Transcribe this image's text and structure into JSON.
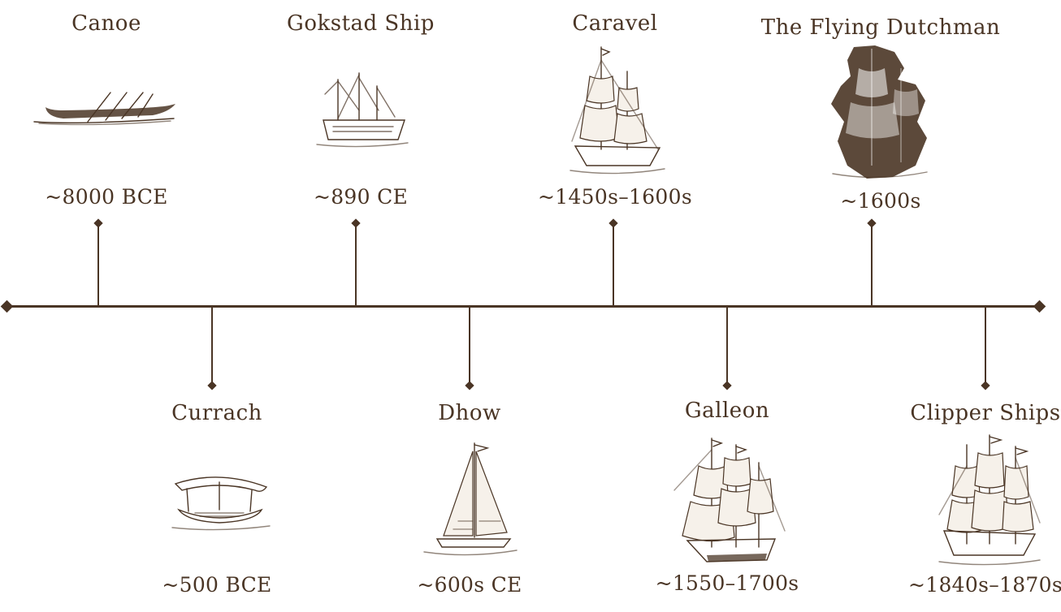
{
  "events": [
    {
      "id": "canoe",
      "name": "Canoe",
      "date": "~8000 BCE",
      "icon": "canoe-illustration-icon"
    },
    {
      "id": "currach",
      "name": "Currach",
      "date": "~500 BCE",
      "icon": "currach-illustration-icon"
    },
    {
      "id": "gokstad",
      "name": "Gokstad Ship",
      "date": "~890 CE",
      "icon": "gokstad-ship-illustration-icon"
    },
    {
      "id": "dhow",
      "name": "Dhow",
      "date": "~600s CE",
      "icon": "dhow-illustration-icon"
    },
    {
      "id": "caravel",
      "name": "Caravel",
      "date": "~1450s–1600s",
      "icon": "caravel-illustration-icon"
    },
    {
      "id": "galleon",
      "name": "Galleon",
      "date": "~1550–1700s",
      "icon": "galleon-illustration-icon"
    },
    {
      "id": "flying",
      "name": "The Flying Dutchman",
      "date": "~1600s",
      "icon": "flying-dutchman-illustration-icon"
    },
    {
      "id": "clipper",
      "name": "Clipper Ships",
      "date": "~1840s–1870s",
      "icon": "clipper-ship-illustration-icon"
    }
  ],
  "colors": {
    "ink": "#4a3525",
    "background": "#ffffff"
  }
}
